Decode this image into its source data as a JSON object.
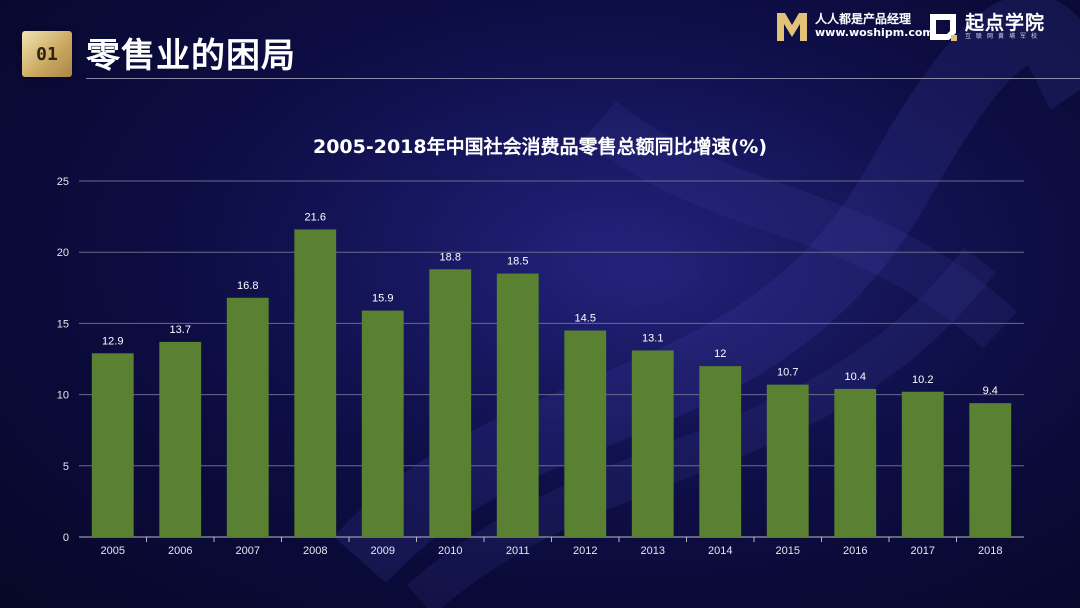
{
  "header": {
    "section_number": "01",
    "title": "零售业的困局"
  },
  "brands": {
    "woshipm": {
      "name": "人人都是产品经理",
      "url": "www.woshipm.com",
      "icon": "m-logo-icon"
    },
    "qidian": {
      "name": "起点学院",
      "slogan": "互联网黄埔军校",
      "icon": "qidian-logo-icon"
    }
  },
  "colors": {
    "bar": "#5a8032",
    "background": "#0d0d45",
    "badge": "#c9a65e"
  },
  "chart_data": {
    "type": "bar",
    "title": "2005-2018年中国社会消费品零售总额同比增速(%)",
    "xlabel": "",
    "ylabel": "",
    "categories": [
      "2005",
      "2006",
      "2007",
      "2008",
      "2009",
      "2010",
      "2011",
      "2012",
      "2013",
      "2014",
      "2015",
      "2016",
      "2017",
      "2018"
    ],
    "values": [
      12.9,
      13.7,
      16.8,
      21.6,
      15.9,
      18.8,
      18.5,
      14.5,
      13.1,
      12,
      10.7,
      10.4,
      10.2,
      9.4
    ],
    "value_labels": [
      "12.9",
      "13.7",
      "16.8",
      "21.6",
      "15.9",
      "18.8",
      "18.5",
      "14.5",
      "13.1",
      "12",
      "10.7",
      "10.4",
      "10.2",
      "9.4"
    ],
    "ylim": [
      0,
      25
    ],
    "yticks": [
      "0",
      "5",
      "10",
      "15",
      "20",
      "25"
    ],
    "grid": true,
    "legend": "none"
  }
}
